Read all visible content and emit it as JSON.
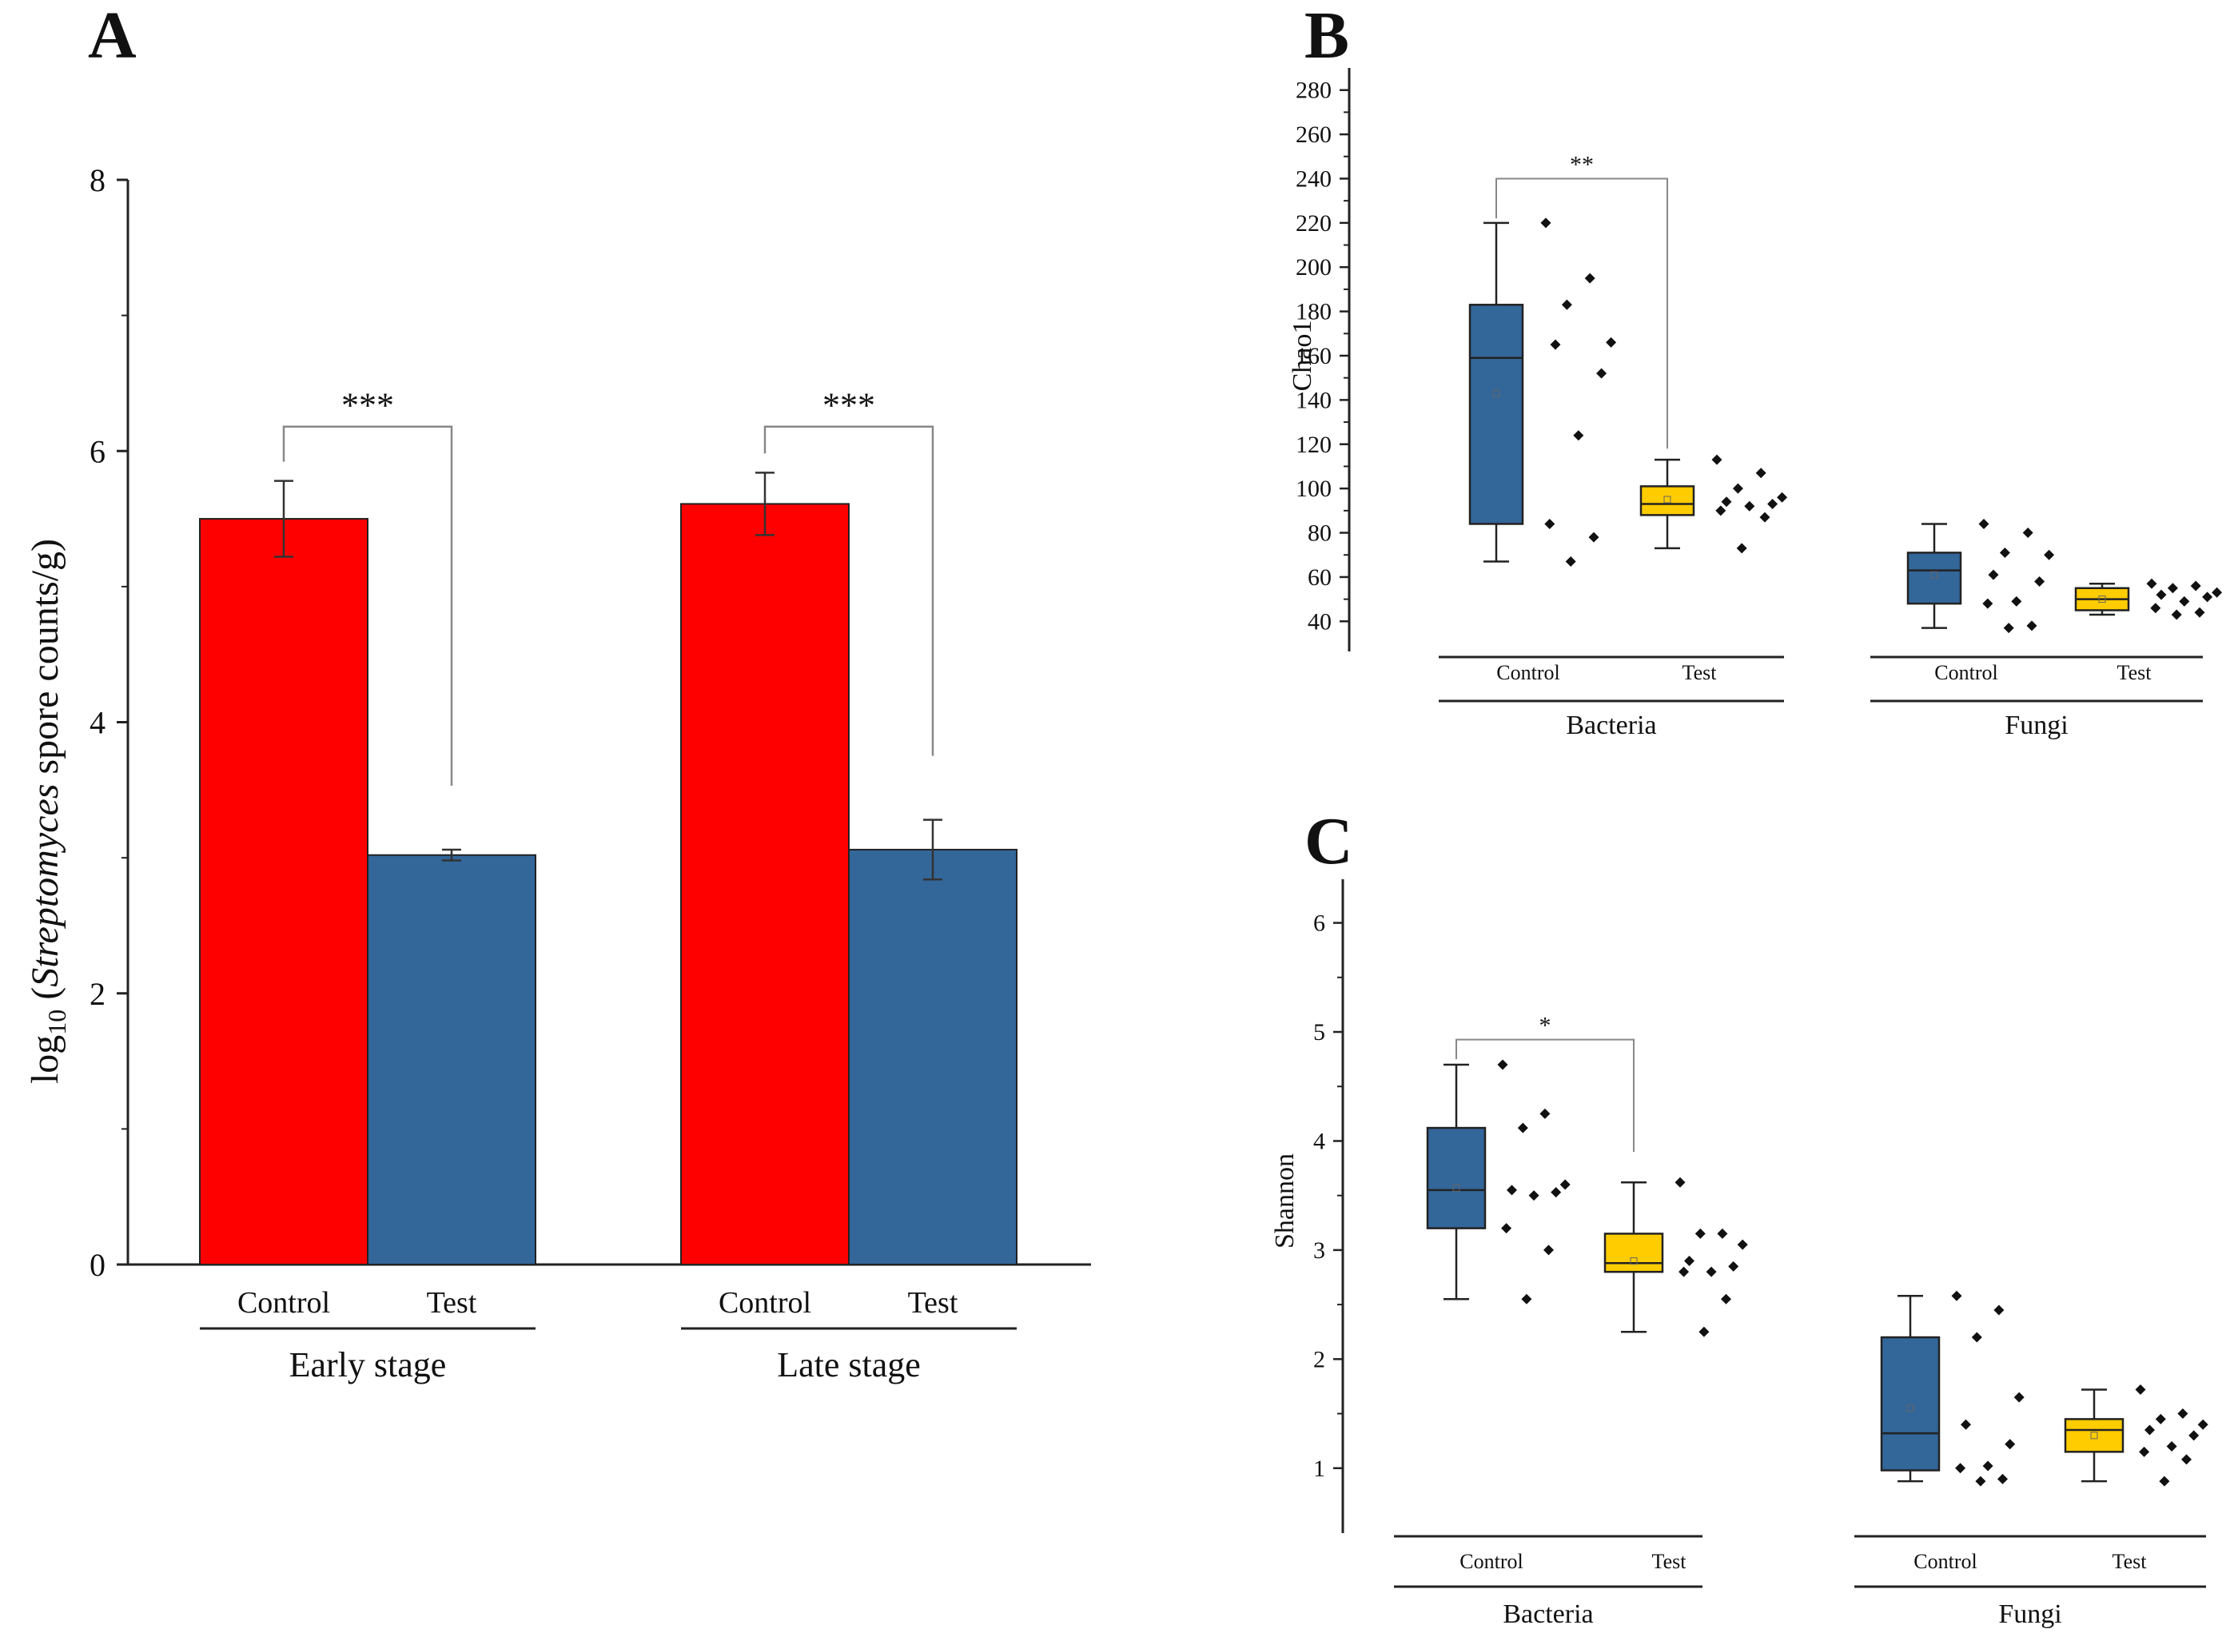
{
  "colors": {
    "control_bar": "#ff0000",
    "test_bar": "#336699",
    "box_blue": "#336699",
    "box_yellow": "#ffcc00",
    "axis": "#222222",
    "bracket": "#888888",
    "point": "#111111"
  },
  "panel_a": {
    "letter": "A",
    "ylabel_prefix": "log",
    "ylabel_sub": "10",
    "ylabel_open": " (",
    "ylabel_italic": "Streptomyces",
    "ylabel_rest": " spore counts/g)"
  },
  "panel_b": {
    "letter": "B"
  },
  "panel_c": {
    "letter": "C"
  },
  "chart_data": [
    {
      "id": "A",
      "type": "bar",
      "title": "",
      "ylabel": "log10 (Streptomyces spore counts/g)",
      "ylim": [
        0,
        8
      ],
      "yticks": [
        0,
        2,
        4,
        6,
        8
      ],
      "ytick_labels": [
        "0",
        "2",
        "4",
        "6",
        "8"
      ],
      "groups": [
        {
          "label": "Early stage",
          "bars": [
            {
              "label": "Control",
              "value": 5.5,
              "error": 0.28,
              "color": "#ff0000"
            },
            {
              "label": "Test",
              "value": 3.02,
              "error": 0.04,
              "color": "#336699"
            }
          ],
          "significance": "***"
        },
        {
          "label": "Late stage",
          "bars": [
            {
              "label": "Control",
              "value": 5.61,
              "error": 0.23,
              "color": "#ff0000"
            },
            {
              "label": "Test",
              "value": 3.06,
              "error": 0.22,
              "color": "#336699"
            }
          ],
          "significance": "***"
        }
      ]
    },
    {
      "id": "B",
      "type": "box",
      "ylabel": "Chao1",
      "ylim": [
        30,
        290
      ],
      "yticks": [
        40,
        60,
        80,
        100,
        120,
        140,
        160,
        180,
        200,
        220,
        240,
        260,
        280
      ],
      "ytick_labels": [
        "40",
        "60",
        "80",
        "100",
        "120",
        "140",
        "160",
        "180",
        "200",
        "220",
        "240",
        "260",
        "280"
      ],
      "groups": [
        {
          "label": "Bacteria",
          "boxes": [
            {
              "label": "Control",
              "min": 67,
              "q1": 84,
              "median": 159,
              "q3": 183,
              "max": 220,
              "mean": 143,
              "color": "#336699",
              "points": [
                220,
                195,
                183,
                166,
                165,
                152,
                124,
                84,
                78,
                67
              ]
            },
            {
              "label": "Test",
              "min": 73,
              "q1": 88,
              "median": 93,
              "q3": 101,
              "max": 113,
              "mean": 95,
              "color": "#ffcc00",
              "points": [
                113,
                107,
                100,
                96,
                94,
                93,
                92,
                90,
                87,
                73
              ]
            }
          ],
          "significance": "**"
        },
        {
          "label": "Fungi",
          "boxes": [
            {
              "label": "Control",
              "min": 37,
              "q1": 48,
              "median": 63,
              "q3": 71,
              "max": 84,
              "mean": 61,
              "color": "#336699",
              "points": [
                84,
                80,
                71,
                70,
                61,
                58,
                49,
                48,
                38,
                37
              ]
            },
            {
              "label": "Test",
              "min": 43,
              "q1": 45,
              "median": 50,
              "q3": 55,
              "max": 57,
              "mean": 50,
              "color": "#ffcc00",
              "points": [
                57,
                56,
                55,
                53,
                52,
                51,
                49,
                46,
                44,
                43
              ]
            }
          ],
          "significance": ""
        }
      ]
    },
    {
      "id": "C",
      "type": "box",
      "ylabel": "Shannon",
      "ylim": [
        0.5,
        6.4
      ],
      "yticks": [
        1,
        2,
        3,
        4,
        5,
        6
      ],
      "ytick_labels": [
        "1",
        "2",
        "3",
        "4",
        "5",
        "6"
      ],
      "groups": [
        {
          "label": "Bacteria",
          "boxes": [
            {
              "label": "Control",
              "min": 2.55,
              "q1": 3.2,
              "median": 3.55,
              "q3": 4.12,
              "max": 4.7,
              "mean": 3.57,
              "color": "#336699",
              "points": [
                4.7,
                4.25,
                4.12,
                3.6,
                3.55,
                3.53,
                3.5,
                3.2,
                3.0,
                2.55
              ]
            },
            {
              "label": "Test",
              "min": 2.25,
              "q1": 2.8,
              "median": 2.88,
              "q3": 3.15,
              "max": 3.62,
              "mean": 2.9,
              "color": "#ffcc00",
              "points": [
                3.62,
                3.15,
                3.15,
                3.05,
                2.9,
                2.85,
                2.8,
                2.8,
                2.55,
                2.25
              ]
            }
          ],
          "significance": "*"
        },
        {
          "label": "Fungi",
          "boxes": [
            {
              "label": "Control",
              "min": 0.88,
              "q1": 0.98,
              "median": 1.32,
              "q3": 2.2,
              "max": 2.58,
              "mean": 1.55,
              "color": "#336699",
              "points": [
                2.58,
                2.45,
                2.2,
                1.65,
                1.4,
                1.22,
                1.02,
                1.0,
                0.9,
                0.88
              ]
            },
            {
              "label": "Test",
              "min": 0.88,
              "q1": 1.15,
              "median": 1.35,
              "q3": 1.45,
              "max": 1.72,
              "mean": 1.3,
              "color": "#ffcc00",
              "points": [
                1.72,
                1.5,
                1.45,
                1.4,
                1.35,
                1.3,
                1.2,
                1.15,
                1.08,
                0.88
              ]
            }
          ],
          "significance": ""
        }
      ]
    }
  ]
}
